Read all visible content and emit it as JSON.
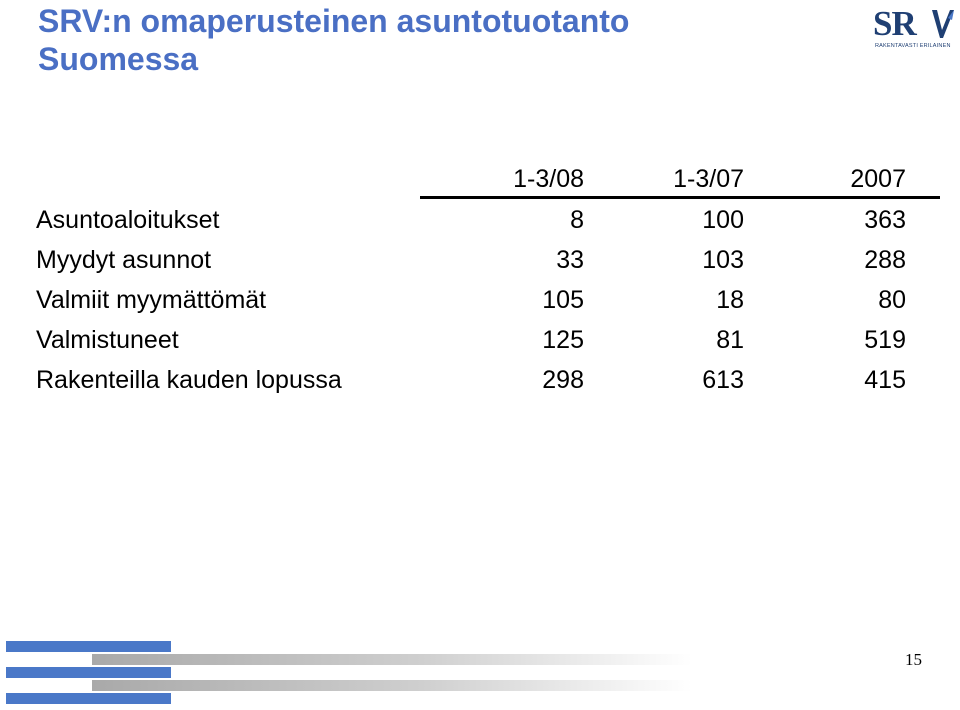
{
  "title": {
    "line1": "SRV:n omaperusteinen asuntotuotanto",
    "line2": "Suomessa"
  },
  "logo": {
    "letters": "SRV",
    "tagline": "RAKENTAVASTI ERILAINEN",
    "color": "#1f3f73"
  },
  "table": {
    "columns": [
      "",
      "1-3/08",
      "1-3/07",
      "2007"
    ],
    "rows": [
      {
        "label": "Asuntoaloitukset",
        "values": [
          "8",
          "100",
          "363"
        ]
      },
      {
        "label": "Myydyt asunnot",
        "values": [
          "33",
          "103",
          "288"
        ]
      },
      {
        "label": "Valmiit myymättömät",
        "values": [
          "105",
          "18",
          "80"
        ]
      },
      {
        "label": "Valmistuneet",
        "values": [
          "125",
          "81",
          "519"
        ]
      },
      {
        "label": "Rakenteilla kauden lopussa",
        "values": [
          "298",
          "613",
          "415"
        ]
      }
    ]
  },
  "footer": {
    "page_number": "15",
    "accent_color": "#4a78c8"
  }
}
